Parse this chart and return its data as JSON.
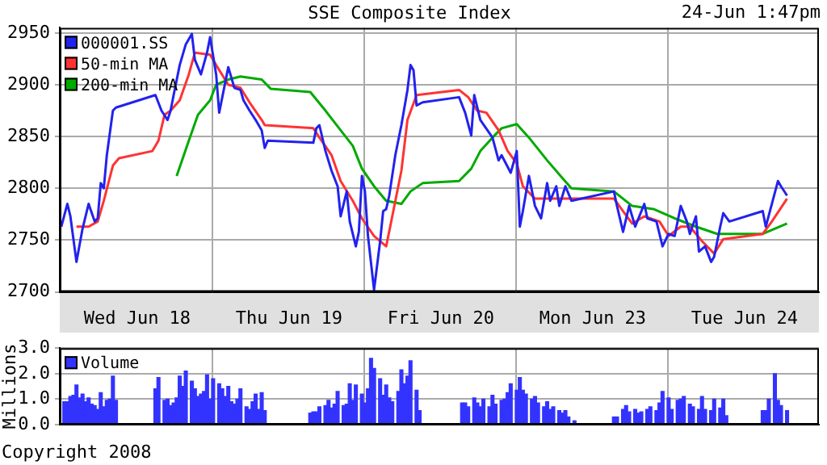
{
  "chart_data": [
    {
      "type": "line",
      "title": "SSE Composite Index",
      "annotations": [
        "24-Jun 1:47pm"
      ],
      "categories": [
        null,
        null,
        null,
        null,
        null,
        null,
        null,
        null,
        null,
        null,
        null,
        null,
        null,
        null,
        null,
        null,
        null,
        null,
        null,
        null,
        null,
        null,
        null,
        null,
        null,
        "Wed Jun 18",
        null,
        null,
        null,
        null,
        null,
        null,
        null,
        null,
        null,
        null,
        null,
        null,
        null,
        null,
        null,
        null,
        null,
        null,
        null,
        null,
        null,
        null,
        null,
        null,
        null,
        null,
        null,
        null,
        null,
        null,
        null,
        null,
        null,
        null,
        null,
        null,
        null,
        null,
        null,
        null,
        null,
        null,
        null,
        null,
        null,
        null,
        null,
        null,
        null,
        "Thu Jun 19",
        null,
        null,
        null,
        null,
        null,
        null,
        null,
        null,
        null,
        null,
        null,
        null,
        null,
        null,
        null,
        null,
        null,
        null,
        null,
        null,
        null,
        null,
        null,
        null,
        null,
        null,
        null,
        null,
        null,
        null,
        null,
        null,
        null,
        null,
        null,
        null,
        null,
        null,
        null,
        null,
        null,
        null,
        null,
        null,
        null,
        null,
        null,
        null,
        null,
        "Fri Jun 20",
        null,
        null,
        null,
        null,
        null,
        null,
        null,
        null,
        null,
        null,
        null,
        null,
        null,
        null,
        null,
        null,
        null,
        null,
        null,
        null,
        null,
        null,
        null,
        null,
        null,
        null,
        null,
        null,
        null,
        null,
        null,
        null,
        null,
        null,
        null,
        null,
        null,
        null,
        null,
        null,
        null,
        null,
        null,
        null,
        null,
        null,
        null,
        null,
        null,
        "Mon Jun 23",
        null,
        null,
        null,
        null,
        null,
        null,
        null,
        null,
        null,
        null,
        null,
        null,
        null,
        null,
        null,
        null,
        null,
        null,
        null,
        null,
        null,
        null,
        null,
        null,
        null,
        null,
        null,
        null,
        null,
        null,
        null,
        null,
        null,
        null,
        null,
        null,
        null,
        null,
        null,
        null,
        null,
        null,
        null,
        null,
        null,
        null,
        null,
        null,
        null,
        "Tue Jun 24",
        null,
        null,
        null,
        null,
        null,
        null,
        null,
        null,
        null,
        null,
        null,
        null,
        null,
        null,
        null,
        null,
        null,
        null,
        null,
        null,
        null,
        null,
        null,
        null
      ],
      "ylim": [
        2700,
        2955
      ],
      "yticks": [
        2700,
        2750,
        2800,
        2850,
        2900,
        2950
      ],
      "grid": true,
      "legend": "top left",
      "series": [
        {
          "name": "000001.SS",
          "color": "#2222ee",
          "values": [
            2763,
            null,
            2785,
            2773,
            null,
            2729,
            null,
            2761,
            null,
            2785,
            null,
            2768,
            2771,
            2805,
            2800,
            2832,
            null,
            2875,
            2878,
            null,
            null,
            null,
            null,
            null,
            null,
            null,
            null,
            null,
            null,
            null,
            null,
            2890,
            null,
            2875,
            null,
            2866,
            2875,
            2890,
            null,
            2919,
            null,
            2939,
            null,
            2949,
            2924,
            null,
            2910,
            null,
            2931,
            2946,
            null,
            2910,
            2873,
            null,
            null,
            2917,
            null,
            2897,
            null,
            2895,
            2885,
            null,
            2875,
            null,
            2866,
            null,
            2856,
            2839,
            2846,
            null,
            null,
            null,
            null,
            null,
            null,
            null,
            null,
            null,
            null,
            null,
            null,
            null,
            null,
            2844,
            2858,
            2861,
            null,
            2836,
            null,
            2817,
            null,
            2802,
            2773,
            null,
            2797,
            2768,
            null,
            2744,
            2758,
            2812,
            2797,
            2754,
            null,
            2702,
            null,
            2749,
            2778,
            2780,
            2793,
            null,
            2832,
            null,
            2861,
            null,
            2895,
            2919,
            2914,
            2880,
            null,
            2883,
            null,
            null,
            null,
            null,
            null,
            null,
            null,
            null,
            null,
            null,
            null,
            2888,
            null,
            2873,
            null,
            2851,
            2890,
            null,
            2866,
            null,
            null,
            null,
            2849,
            null,
            2827,
            2832,
            null,
            null,
            2815,
            null,
            2836,
            2763,
            2778,
            null,
            2812,
            null,
            2783,
            null,
            2771,
            null,
            2805,
            2788,
            null,
            2802,
            2783,
            null,
            2802,
            null,
            2788,
            null,
            null,
            null,
            null,
            null,
            null,
            null,
            null,
            null,
            null,
            null,
            null,
            null,
            2797,
            2783,
            null,
            2758,
            null,
            2783,
            null,
            2763,
            null,
            null,
            2785,
            2771,
            null,
            null,
            2768,
            null,
            2744,
            null,
            2756,
            null,
            2754,
            null,
            2783,
            null,
            2768,
            2756,
            null,
            2773,
            2739,
            null,
            2744,
            null,
            2729,
            2734,
            null,
            2763,
            2776,
            null,
            2768,
            null,
            null,
            null,
            null,
            null,
            null,
            null,
            null,
            null,
            null,
            2778,
            2763,
            null,
            2785,
            null,
            2807,
            2802,
            null,
            2793,
            null,
            null,
            null,
            null,
            null,
            null,
            null,
            null,
            null,
            null
          ]
        },
        {
          "name": "50-min MA",
          "color": "#ff3333",
          "values": [
            null,
            null,
            null,
            null,
            null,
            2763,
            null,
            null,
            null,
            2763,
            null,
            null,
            2768,
            null,
            2788,
            null,
            null,
            2822,
            null,
            2829,
            null,
            null,
            null,
            null,
            null,
            null,
            null,
            null,
            null,
            null,
            2836,
            null,
            2846,
            null,
            2871,
            null,
            2875,
            null,
            null,
            2885,
            null,
            null,
            2910,
            null,
            2931,
            null,
            null,
            null,
            null,
            2929,
            null,
            2919,
            null,
            null,
            null,
            2900,
            null,
            null,
            null,
            2897,
            null,
            null,
            2883,
            null,
            null,
            null,
            2866,
            2861,
            null,
            null,
            null,
            null,
            null,
            null,
            null,
            null,
            null,
            null,
            null,
            null,
            null,
            null,
            null,
            2858,
            null,
            2849,
            null,
            null,
            null,
            2832,
            null,
            null,
            2807,
            null,
            null,
            null,
            2788,
            null,
            null,
            2771,
            null,
            null,
            null,
            2754,
            null,
            null,
            null,
            2744,
            null,
            2773,
            null,
            null,
            2817,
            null,
            2866,
            null,
            null,
            2890,
            null,
            null,
            null,
            null,
            null,
            null,
            null,
            null,
            null,
            null,
            null,
            null,
            null,
            2895,
            null,
            null,
            2888,
            null,
            null,
            2875,
            null,
            null,
            2873,
            null,
            null,
            null,
            2856,
            null,
            null,
            2836,
            null,
            null,
            2824,
            null,
            2802,
            null,
            null,
            null,
            2790,
            null,
            null,
            null,
            null,
            null,
            null,
            null,
            null,
            2790,
            null,
            null,
            null,
            null,
            null,
            null,
            null,
            null,
            null,
            null,
            null,
            null,
            null,
            null,
            null,
            null,
            2790,
            null,
            null,
            2778,
            null,
            null,
            2766,
            null,
            null,
            null,
            2773,
            null,
            null,
            null,
            null,
            2768,
            null,
            null,
            2754,
            null,
            null,
            null,
            2763,
            null,
            null,
            2763,
            null,
            null,
            null,
            2749,
            null,
            null,
            null,
            2737,
            null,
            null,
            2751,
            null,
            null,
            null,
            null,
            null,
            null,
            null,
            null,
            null,
            null,
            null,
            null,
            2756,
            null,
            null,
            2768,
            null,
            null,
            null,
            null,
            2790,
            null,
            null,
            null,
            null,
            null,
            null,
            null,
            null,
            null,
            null
          ]
        },
        {
          "name": "200-min MA",
          "color": "#00aa00",
          "values": [
            null,
            null,
            null,
            null,
            null,
            null,
            null,
            null,
            null,
            null,
            null,
            null,
            null,
            null,
            null,
            null,
            null,
            null,
            null,
            null,
            null,
            null,
            null,
            null,
            null,
            null,
            null,
            null,
            null,
            null,
            null,
            null,
            null,
            null,
            null,
            null,
            null,
            null,
            2812,
            null,
            null,
            null,
            2846,
            null,
            null,
            2871,
            null,
            null,
            null,
            2885,
            null,
            2900,
            null,
            null,
            null,
            2905,
            null,
            null,
            null,
            2908,
            null,
            null,
            null,
            null,
            null,
            null,
            2905,
            null,
            null,
            2896,
            null,
            null,
            null,
            null,
            null,
            null,
            null,
            null,
            null,
            null,
            null,
            null,
            2893,
            null,
            null,
            null,
            null,
            2875,
            null,
            null,
            null,
            null,
            2856,
            null,
            null,
            null,
            2841,
            null,
            null,
            2819,
            null,
            null,
            null,
            2802,
            null,
            null,
            null,
            2788,
            null,
            null,
            null,
            null,
            2785,
            null,
            null,
            2797,
            null,
            null,
            null,
            2805,
            null,
            null,
            null,
            null,
            null,
            null,
            null,
            null,
            null,
            null,
            null,
            2807,
            null,
            null,
            null,
            2819,
            null,
            null,
            2836,
            null,
            null,
            null,
            2849,
            null,
            null,
            2858,
            null,
            null,
            null,
            null,
            2862,
            null,
            null,
            null,
            2849,
            null,
            null,
            null,
            null,
            null,
            2827,
            null,
            null,
            null,
            null,
            2810,
            null,
            null,
            2800,
            null,
            null,
            null,
            null,
            null,
            null,
            null,
            null,
            null,
            null,
            null,
            null,
            null,
            2797,
            null,
            null,
            null,
            null,
            null,
            2783,
            null,
            null,
            null,
            null,
            null,
            null,
            2780,
            null,
            null,
            null,
            null,
            null,
            null,
            2771,
            null,
            null,
            null,
            null,
            null,
            null,
            2763,
            null,
            null,
            null,
            null,
            null,
            null,
            2756,
            null,
            null,
            null,
            null,
            null,
            null,
            null,
            null,
            null,
            null,
            null,
            null,
            null,
            null,
            2756,
            null,
            null,
            null,
            null,
            null,
            null,
            null,
            2766,
            null,
            null,
            null,
            null,
            null,
            null,
            null,
            null,
            null,
            null
          ]
        }
      ]
    },
    {
      "type": "bar",
      "ylabel": "Millions",
      "annotations": [
        "Copyright 2008"
      ],
      "categories": [
        null,
        null,
        null,
        null,
        null,
        null,
        null,
        null,
        null,
        null,
        null,
        null,
        null,
        null,
        null,
        null,
        null,
        null,
        null,
        null,
        null,
        null,
        null,
        null,
        null,
        null,
        null,
        null,
        null,
        null,
        null,
        null,
        null,
        null,
        null,
        null,
        null,
        null,
        null,
        null,
        null,
        null,
        null,
        null,
        null,
        null,
        null,
        null,
        null,
        null,
        null,
        null,
        null,
        null,
        null,
        null,
        null,
        null,
        null,
        null,
        null,
        null,
        null,
        null,
        null,
        null,
        null,
        null,
        null,
        null,
        null,
        null,
        null,
        null,
        null,
        null,
        null,
        null,
        null,
        null,
        null,
        null,
        null,
        null,
        null,
        null,
        null,
        null,
        null,
        null,
        null,
        null,
        null,
        null,
        null,
        null,
        null,
        null,
        null,
        null,
        null,
        null,
        null,
        null,
        null,
        null,
        null,
        null,
        null,
        null,
        null,
        null,
        null,
        null,
        null,
        null,
        null,
        null,
        null,
        null,
        null,
        null,
        null,
        null,
        null,
        null,
        null,
        null,
        null,
        null,
        null,
        null,
        null,
        null,
        null,
        null,
        null,
        null,
        null,
        null,
        null,
        null,
        null,
        null,
        null,
        null,
        null,
        null,
        null,
        null,
        null,
        null,
        null,
        null,
        null,
        null,
        null,
        null,
        null,
        null,
        null,
        null,
        null,
        null,
        null,
        null,
        null,
        null,
        null,
        null,
        null,
        null,
        null,
        null,
        null,
        null,
        null,
        null,
        null,
        null,
        null,
        null,
        null,
        null,
        null,
        null,
        null,
        null,
        null,
        null,
        null,
        null,
        null,
        null,
        null,
        null,
        null,
        null,
        null,
        null,
        null,
        null,
        null,
        null,
        null,
        null,
        null,
        null,
        null,
        null,
        null,
        null,
        null,
        null,
        null,
        null,
        null,
        null,
        null,
        null,
        null,
        null,
        null,
        null,
        null,
        null,
        null,
        null,
        null,
        null,
        null,
        null,
        null,
        null,
        null,
        null,
        null,
        null,
        null,
        null,
        null,
        null,
        null,
        null,
        null,
        null,
        null,
        null,
        null,
        null
      ],
      "ylim": [
        0,
        3
      ],
      "yticks": [
        {
          "value": 0,
          "label": "0.0"
        },
        {
          "value": 1,
          "label": "1.0"
        },
        {
          "value": 2,
          "label": "2.0"
        },
        {
          "value": 3,
          "label": "3.0"
        }
      ],
      "grid": true,
      "legend": "top left",
      "tick_labels": "y",
      "series": [
        {
          "name": "Volume",
          "color": "#3333ff",
          "values": [
            null,
            0.9,
            0.9,
            1.1,
            1.15,
            1.55,
            1.05,
            1.2,
            0.9,
            1.05,
            0.8,
            0.75,
            0.6,
            1.25,
            0.7,
            0.95,
            1.0,
            1.9,
            0.95,
            null,
            null,
            null,
            null,
            null,
            null,
            null,
            null,
            null,
            null,
            null,
            null,
            1.4,
            1.85,
            null,
            0.95,
            1.0,
            0.75,
            0.85,
            1.05,
            1.9,
            1.5,
            2.1,
            null,
            1.7,
            1.4,
            1.1,
            1.2,
            1.3,
            1.95,
            1.0,
            1.8,
            null,
            1.6,
            1.4,
            1.1,
            1.5,
            0.9,
            0.8,
            1.0,
            1.4,
            null,
            0.7,
            0.6,
            0.9,
            1.2,
            0.6,
            1.25,
            0.55,
            null,
            null,
            null,
            null,
            null,
            null,
            null,
            null,
            null,
            null,
            null,
            null,
            null,
            null,
            0.45,
            0.5,
            0.5,
            0.7,
            null,
            0.75,
            0.95,
            0.65,
            0.8,
            1.3,
            null,
            0.75,
            0.8,
            1.6,
            0.95,
            1.55,
            null,
            1.2,
            0.85,
            1.4,
            2.6,
            2.2,
            null,
            1.8,
            1.15,
            1.55,
            1.05,
            0.9,
            null,
            1.3,
            2.15,
            1.6,
            1.9,
            2.5,
            null,
            1.35,
            0.55,
            null,
            null,
            null,
            null,
            null,
            null,
            null,
            null,
            null,
            null,
            null,
            null,
            null,
            0.85,
            0.85,
            0.7,
            null,
            1.05,
            0.85,
            0.7,
            1.0,
            null,
            0.7,
            1.15,
            0.8,
            null,
            0.95,
            1.0,
            1.25,
            1.6,
            null,
            1.35,
            1.85,
            1.35,
            1.2,
            null,
            1.0,
            1.1,
            0.85,
            null,
            0.7,
            0.9,
            0.6,
            0.7,
            null,
            0.55,
            0.45,
            0.55,
            0.3,
            null,
            0.15,
            null,
            null,
            null,
            null,
            null,
            null,
            null,
            null,
            null,
            null,
            null,
            null,
            0.3,
            0.3,
            null,
            0.6,
            0.75,
            0.5,
            null,
            0.6,
            0.45,
            0.5,
            null,
            0.6,
            0.7,
            null,
            0.55,
            0.85,
            1.3,
            null,
            1.05,
            0.6,
            null,
            0.95,
            1.0,
            1.1,
            null,
            0.8,
            0.7,
            null,
            0.6,
            1.1,
            0.6,
            null,
            0.55,
            1.0,
            null,
            0.65,
            1.0,
            0.35,
            null,
            null,
            null,
            null,
            null,
            null,
            null,
            null,
            null,
            null,
            null,
            0.55,
            0.55,
            1.0,
            null,
            2.0,
            0.95,
            0.75,
            null,
            0.55,
            null,
            null,
            null,
            null,
            null,
            null,
            null,
            null,
            null,
            null
          ]
        }
      ]
    }
  ]
}
